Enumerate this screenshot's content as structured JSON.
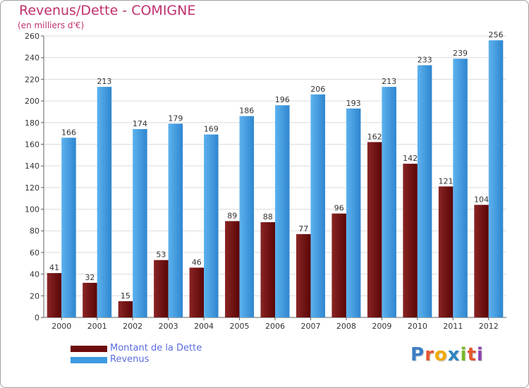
{
  "title": "Revenus/Dette - COMIGNE",
  "subtitle": "(en milliers d'€)",
  "logo": {
    "text": "Proxiti",
    "letters": [
      {
        "char": "P",
        "color": "#3a7ec8"
      },
      {
        "char": "r",
        "color": "#e4572e"
      },
      {
        "char": "o",
        "color": "#f2a900"
      },
      {
        "char": "x",
        "color": "#2e86c1"
      },
      {
        "char": "i",
        "color": "#7bb928"
      },
      {
        "char": "t",
        "color": "#e4572e"
      },
      {
        "char": "i",
        "color": "#8e44ad"
      }
    ]
  },
  "legend": [
    {
      "label": "Montant de la Dette",
      "color": "#6e0d0d"
    },
    {
      "label": "Revenus",
      "color": "#3d9ae0"
    }
  ],
  "chart_data": {
    "type": "bar",
    "title": "Revenus/Dette - COMIGNE",
    "ylabel": "(en milliers d'€)",
    "xlabel": "",
    "categories": [
      "2000",
      "2001",
      "2002",
      "2003",
      "2004",
      "2005",
      "2006",
      "2007",
      "2008",
      "2009",
      "2010",
      "2011",
      "2012"
    ],
    "series": [
      {
        "name": "Montant de la Dette",
        "color": "#6e0d0d",
        "values": [
          41,
          32,
          15,
          53,
          46,
          89,
          88,
          77,
          96,
          162,
          142,
          121,
          104
        ]
      },
      {
        "name": "Revenus",
        "color": "#3d9ae0",
        "values": [
          166,
          213,
          174,
          179,
          169,
          186,
          196,
          206,
          193,
          213,
          233,
          239,
          256
        ]
      }
    ],
    "ylim": [
      0,
      260
    ],
    "yticks": [
      0,
      20,
      40,
      60,
      80,
      100,
      120,
      140,
      160,
      180,
      200,
      220,
      240,
      260
    ],
    "grid": true,
    "legend_position": "bottom-left"
  }
}
